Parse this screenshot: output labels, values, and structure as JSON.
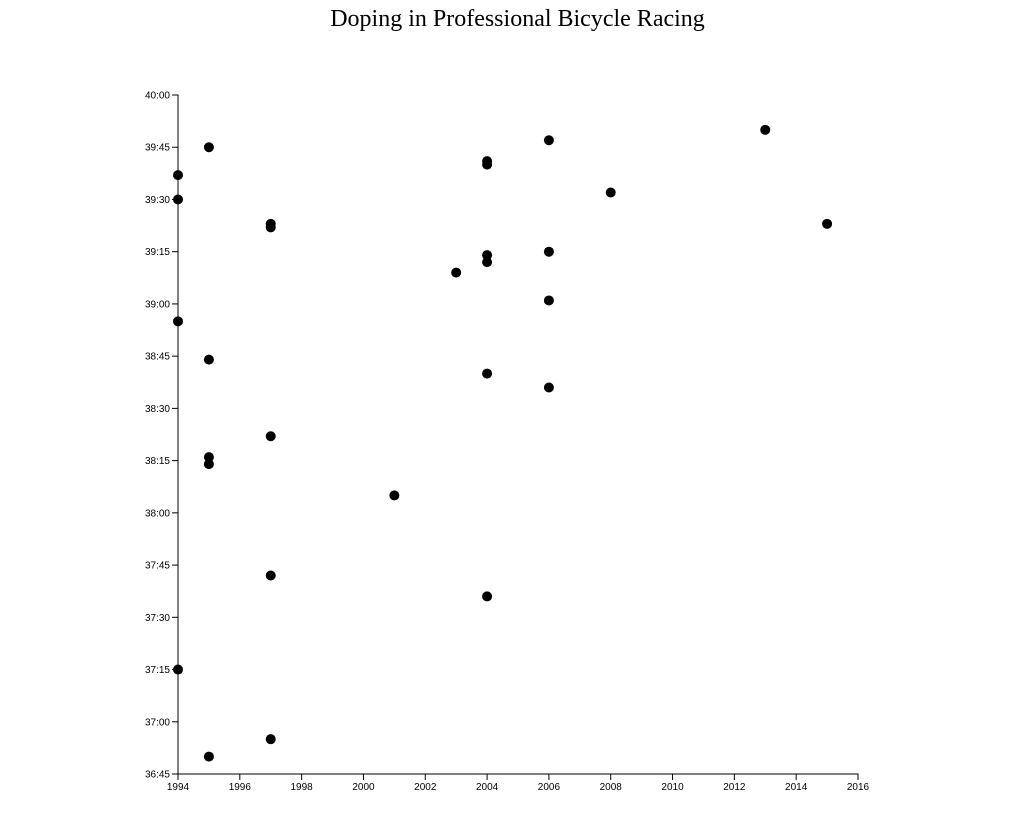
{
  "chart_data": {
    "type": "scatter",
    "title": "Doping in Professional Bicycle Racing",
    "xlabel": "",
    "ylabel": "",
    "xlim": [
      1994,
      2016
    ],
    "ylim": [
      "36:45",
      "40:00"
    ],
    "x_ticks": [
      "1994",
      "1996",
      "1998",
      "2000",
      "2002",
      "2004",
      "2006",
      "2008",
      "2010",
      "2012",
      "2014",
      "2016"
    ],
    "y_ticks": [
      "40:00",
      "39:45",
      "39:30",
      "39:15",
      "39:00",
      "38:45",
      "38:30",
      "38:15",
      "38:00",
      "37:45",
      "37:30",
      "37:15",
      "37:00",
      "36:45"
    ],
    "grid": false,
    "legend": "none",
    "point_color": "#000000",
    "points": [
      {
        "x": 1994,
        "y": "39:37"
      },
      {
        "x": 1994,
        "y": "39:30"
      },
      {
        "x": 1994,
        "y": "38:55"
      },
      {
        "x": 1994,
        "y": "37:15"
      },
      {
        "x": 1995,
        "y": "39:45"
      },
      {
        "x": 1995,
        "y": "38:44"
      },
      {
        "x": 1995,
        "y": "38:16"
      },
      {
        "x": 1995,
        "y": "38:14"
      },
      {
        "x": 1995,
        "y": "36:50"
      },
      {
        "x": 1997,
        "y": "39:23"
      },
      {
        "x": 1997,
        "y": "39:22"
      },
      {
        "x": 1997,
        "y": "38:22"
      },
      {
        "x": 1997,
        "y": "37:42"
      },
      {
        "x": 1997,
        "y": "36:55"
      },
      {
        "x": 2001,
        "y": "38:05"
      },
      {
        "x": 2003,
        "y": "39:09"
      },
      {
        "x": 2004,
        "y": "39:41"
      },
      {
        "x": 2004,
        "y": "39:40"
      },
      {
        "x": 2004,
        "y": "39:14"
      },
      {
        "x": 2004,
        "y": "39:12"
      },
      {
        "x": 2004,
        "y": "38:40"
      },
      {
        "x": 2004,
        "y": "37:36"
      },
      {
        "x": 2006,
        "y": "39:47"
      },
      {
        "x": 2006,
        "y": "39:15"
      },
      {
        "x": 2006,
        "y": "39:01"
      },
      {
        "x": 2006,
        "y": "38:36"
      },
      {
        "x": 2008,
        "y": "39:32"
      },
      {
        "x": 2013,
        "y": "39:50"
      },
      {
        "x": 2015,
        "y": "39:23"
      }
    ]
  }
}
